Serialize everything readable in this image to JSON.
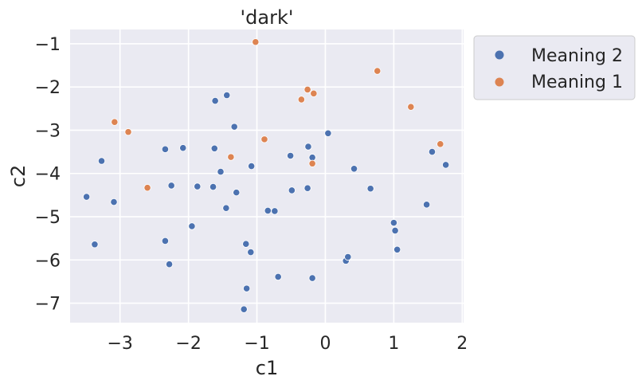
{
  "chart_data": {
    "type": "scatter",
    "title": "'dark'",
    "xlabel": "c1",
    "ylabel": "c2",
    "xlim": [
      -3.73,
      2.02
    ],
    "ylim": [
      -7.45,
      -0.67
    ],
    "xticks": [
      -3,
      -2,
      -1,
      0,
      1,
      2
    ],
    "yticks": [
      -1,
      -2,
      -3,
      -4,
      -5,
      -6,
      -7
    ],
    "xtick_labels": [
      "−3",
      "−2",
      "−1",
      "0",
      "1",
      "2"
    ],
    "ytick_labels": [
      "−1",
      "−2",
      "−3",
      "−4",
      "−5",
      "−6",
      "−7"
    ],
    "grid": true,
    "legend_position": "outside upper-right",
    "series": [
      {
        "name": "Meaning 2",
        "color": "#4c72b0",
        "points": [
          [
            -3.49,
            -4.54
          ],
          [
            -3.37,
            -5.64
          ],
          [
            -3.27,
            -3.71
          ],
          [
            -3.09,
            -4.66
          ],
          [
            -2.34,
            -3.44
          ],
          [
            -2.34,
            -5.56
          ],
          [
            -2.28,
            -6.1
          ],
          [
            -2.25,
            -4.28
          ],
          [
            -2.08,
            -3.41
          ],
          [
            -1.95,
            -5.22
          ],
          [
            -1.87,
            -4.3
          ],
          [
            -1.64,
            -4.31
          ],
          [
            -1.62,
            -3.42
          ],
          [
            -1.61,
            -2.32
          ],
          [
            -1.53,
            -3.96
          ],
          [
            -1.45,
            -4.8
          ],
          [
            -1.44,
            -2.19
          ],
          [
            -1.33,
            -2.92
          ],
          [
            -1.3,
            -4.44
          ],
          [
            -1.19,
            -7.14
          ],
          [
            -1.16,
            -5.63
          ],
          [
            -1.15,
            -6.66
          ],
          [
            -1.09,
            -5.82
          ],
          [
            -1.08,
            -3.83
          ],
          [
            -0.84,
            -4.86
          ],
          [
            -0.74,
            -4.87
          ],
          [
            -0.69,
            -6.39
          ],
          [
            -0.51,
            -3.59
          ],
          [
            -0.49,
            -4.39
          ],
          [
            -0.26,
            -4.34
          ],
          [
            -0.25,
            -3.38
          ],
          [
            -0.19,
            -3.63
          ],
          [
            -0.19,
            -6.42
          ],
          [
            0.04,
            -3.07
          ],
          [
            0.3,
            -6.02
          ],
          [
            0.33,
            -5.93
          ],
          [
            0.42,
            -3.89
          ],
          [
            0.66,
            -4.35
          ],
          [
            1.0,
            -5.14
          ],
          [
            1.02,
            -5.32
          ],
          [
            1.05,
            -5.76
          ],
          [
            1.48,
            -4.72
          ],
          [
            1.56,
            -3.5
          ],
          [
            1.76,
            -3.8
          ]
        ]
      },
      {
        "name": "Meaning 1",
        "color": "#dd8452",
        "points": [
          [
            -3.08,
            -2.81
          ],
          [
            -2.88,
            -3.04
          ],
          [
            -2.6,
            -4.33
          ],
          [
            -1.38,
            -3.62
          ],
          [
            -1.02,
            -0.96
          ],
          [
            -0.89,
            -3.21
          ],
          [
            -0.35,
            -2.29
          ],
          [
            -0.26,
            -2.06
          ],
          [
            -0.19,
            -3.77
          ],
          [
            -0.17,
            -2.15
          ],
          [
            0.76,
            -1.63
          ],
          [
            1.25,
            -2.46
          ],
          [
            1.68,
            -3.32
          ]
        ]
      }
    ]
  }
}
